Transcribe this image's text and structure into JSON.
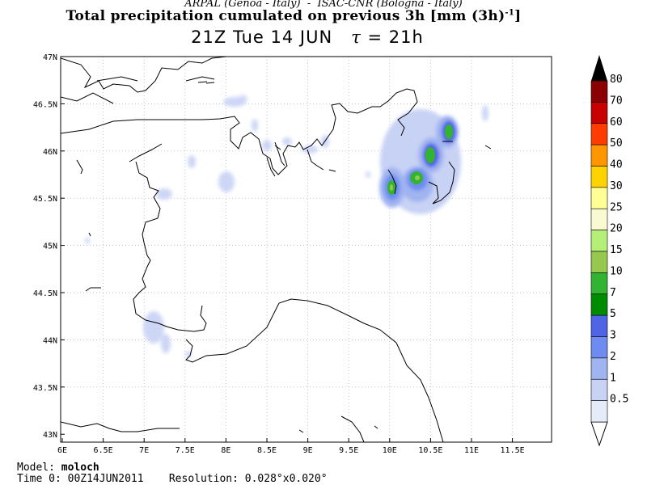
{
  "header": {
    "credit": "ARPAL (Genoa - Italy)  -  ISAC-CNR (Bologna - Italy)",
    "title_main": "Total precipitation cumulated on previous 3h [mm (3h)",
    "title_sup": "-1",
    "title_end": "]",
    "subtitle_time": "21Z Tue 14 JUN",
    "subtitle_tau": "τ",
    "subtitle_tau_value": "= 21h"
  },
  "map": {
    "lon_range": [
      6.0,
      12.0
    ],
    "lat_range": [
      43.0,
      47.0
    ],
    "lon_ticks": [
      "6E",
      "6.5E",
      "7E",
      "7.5E",
      "8E",
      "8.5E",
      "9E",
      "9.5E",
      "10E",
      "10.5E",
      "11E",
      "11.5E"
    ],
    "lat_ticks": [
      "47N",
      "46.5N",
      "46N",
      "45.5N",
      "45N",
      "44.5N",
      "44N",
      "43.5N",
      "43N"
    ],
    "grid": "dotted",
    "precip_cells": [
      {
        "lon": 10.0,
        "lat": 45.7,
        "level": 2
      },
      {
        "lon": 10.35,
        "lat": 45.72,
        "level": 2
      },
      {
        "lon": 10.55,
        "lat": 45.95,
        "level": 2
      },
      {
        "lon": 10.75,
        "lat": 46.17,
        "level": 2
      },
      {
        "lon": 7.3,
        "lat": 44.1,
        "level": 0
      },
      {
        "lon": 8.25,
        "lat": 46.55,
        "level": 0
      }
    ]
  },
  "colorbar": {
    "labels": [
      "80",
      "70",
      "60",
      "50",
      "40",
      "30",
      "25",
      "20",
      "15",
      "10",
      "7",
      "5",
      "3",
      "2",
      "1",
      "0.5"
    ],
    "colors": [
      "#5a0000",
      "#8b0000",
      "#c80000",
      "#ff3c00",
      "#ff9600",
      "#ffd200",
      "#ffff96",
      "#fafad2",
      "#b4f078",
      "#96c850",
      "#32b432",
      "#008c00",
      "#5064e6",
      "#6e8cf0",
      "#a0b4f0",
      "#c8d2f5",
      "#e6ebfa"
    ],
    "cap_color": "#000000"
  },
  "footer": {
    "model_label": "Model:",
    "model_value": "moloch",
    "time_label": "Time 0:",
    "time_value": "00Z14JUN2011",
    "resolution_label": "Resolution:",
    "resolution_value": "0.028°x0.020°"
  },
  "icons": {
    "colorbar_top": "triangle-up-icon",
    "colorbar_bottom": "triangle-down-icon"
  }
}
